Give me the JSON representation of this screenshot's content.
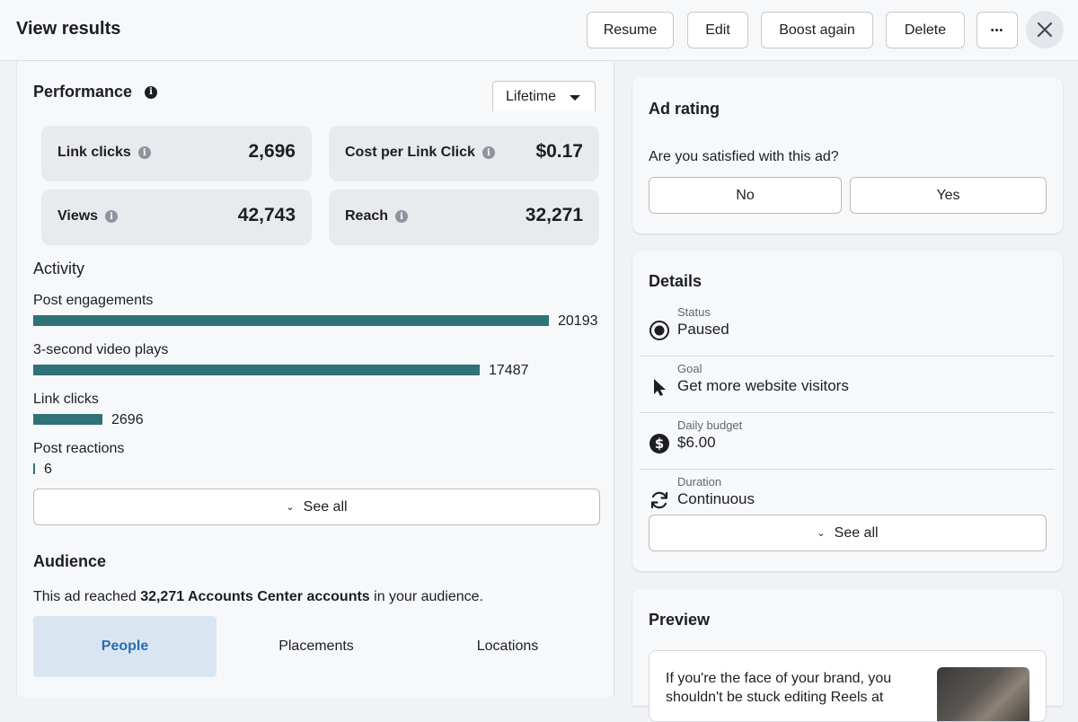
{
  "header": {
    "title": "View results",
    "buttons": {
      "resume": "Resume",
      "edit": "Edit",
      "boost_again": "Boost again",
      "delete": "Delete",
      "more": "•••"
    }
  },
  "performance": {
    "title": "Performance",
    "range": "Lifetime",
    "metrics": [
      {
        "label": "Link clicks",
        "value": "2,696"
      },
      {
        "label": "Cost per Link Click",
        "value": "$0.17"
      },
      {
        "label": "Views",
        "value": "42,743"
      },
      {
        "label": "Reach",
        "value": "32,271"
      }
    ]
  },
  "activity": {
    "title": "Activity",
    "items": [
      {
        "label": "Post engagements",
        "value": 20193
      },
      {
        "label": "3-second video plays",
        "value": 17487
      },
      {
        "label": "Link clicks",
        "value": 2696
      },
      {
        "label": "Post reactions",
        "value": 6
      }
    ],
    "see_all": "See all"
  },
  "audience": {
    "title": "Audience",
    "text_prefix": "This ad reached ",
    "text_bold": "32,271 Accounts Center accounts",
    "text_suffix": " in your audience.",
    "tabs": [
      "People",
      "Placements",
      "Locations"
    ],
    "active_tab": "People"
  },
  "ad_rating": {
    "title": "Ad rating",
    "question": "Are you satisfied with this ad?",
    "no": "No",
    "yes": "Yes"
  },
  "details": {
    "title": "Details",
    "rows": [
      {
        "label": "Status",
        "value": "Paused",
        "icon": "radio-icon"
      },
      {
        "label": "Goal",
        "value": "Get more website visitors",
        "icon": "cursor-icon"
      },
      {
        "label": "Daily budget",
        "value": "$6.00",
        "icon": "dollar-icon"
      },
      {
        "label": "Duration",
        "value": "Continuous",
        "icon": "refresh-icon"
      }
    ],
    "see_all": "See all"
  },
  "preview": {
    "title": "Preview",
    "text": "If you're the face of your brand, you shouldn't be stuck editing Reels at"
  },
  "colors": {
    "bar": "#2f7278",
    "active_tab_bg": "#d9e6f2",
    "active_tab_text": "#2c6cb0"
  }
}
